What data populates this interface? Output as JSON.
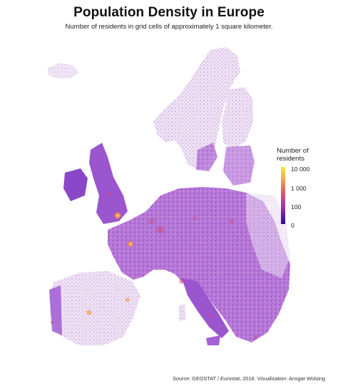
{
  "title": "Population Density in Europe",
  "subtitle": "Number of residents in grid cells of approximately 1 square kilometer.",
  "legend": {
    "title_line1": "Number of",
    "title_line2": "residents",
    "labels": [
      "10 000",
      "1 000",
      "100",
      "0"
    ]
  },
  "source": "Source: GEOSTAT / Eurostat, 2018. Visualisation: Ansgar Wolsing",
  "colors": {
    "scale": [
      "#2b0a8e",
      "#6a1cb1",
      "#b03ba1",
      "#e0566b",
      "#f6a447",
      "#f6e93a"
    ],
    "background": "#ffffff"
  }
}
